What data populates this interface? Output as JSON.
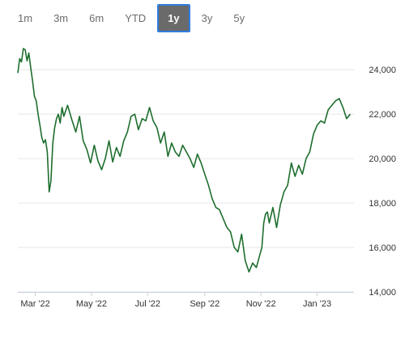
{
  "range_selector": {
    "buttons": [
      {
        "label": "1m",
        "active": false
      },
      {
        "label": "3m",
        "active": false
      },
      {
        "label": "6m",
        "active": false
      },
      {
        "label": "YTD",
        "active": false
      },
      {
        "label": "1y",
        "active": true
      },
      {
        "label": "3y",
        "active": false
      },
      {
        "label": "5y",
        "active": false
      }
    ]
  },
  "chart_data": {
    "type": "line",
    "x_ticks": [
      "Mar '22",
      "May '22",
      "Jul '22",
      "Sep '22",
      "Nov '22",
      "Jan '23"
    ],
    "y_ticks": [
      "14,000",
      "16,000",
      "18,000",
      "20,000",
      "22,000",
      "24,000"
    ],
    "ylim": [
      14000,
      25500
    ],
    "xlim": [
      "2022-02-10",
      "2023-02-10"
    ],
    "grid": {
      "horizontal": true,
      "vertical": false
    },
    "legend": "none",
    "line_color": "#1e6e2e",
    "series": [
      {
        "x": [
          "2022-02-10",
          "2022-02-12",
          "2022-02-14",
          "2022-02-16",
          "2022-02-18",
          "2022-02-20",
          "2022-02-22",
          "2022-02-24",
          "2022-02-26",
          "2022-02-28",
          "2022-03-02",
          "2022-03-04",
          "2022-03-06",
          "2022-03-08",
          "2022-03-10",
          "2022-03-12",
          "2022-03-14",
          "2022-03-16",
          "2022-03-18",
          "2022-03-20",
          "2022-03-22",
          "2022-03-24",
          "2022-03-26",
          "2022-03-28",
          "2022-03-30",
          "2022-04-01",
          "2022-04-05",
          "2022-04-10",
          "2022-04-14",
          "2022-04-18",
          "2022-04-22",
          "2022-04-26",
          "2022-04-30",
          "2022-05-04",
          "2022-05-08",
          "2022-05-12",
          "2022-05-16",
          "2022-05-20",
          "2022-05-24",
          "2022-05-28",
          "2022-06-01",
          "2022-06-05",
          "2022-06-09",
          "2022-06-13",
          "2022-06-17",
          "2022-06-21",
          "2022-06-25",
          "2022-06-29",
          "2022-07-03",
          "2022-07-07",
          "2022-07-11",
          "2022-07-15",
          "2022-07-19",
          "2022-07-23",
          "2022-07-27",
          "2022-07-31",
          "2022-08-04",
          "2022-08-08",
          "2022-08-12",
          "2022-08-16",
          "2022-08-20",
          "2022-08-24",
          "2022-08-28",
          "2022-09-01",
          "2022-09-05",
          "2022-09-09",
          "2022-09-13",
          "2022-09-17",
          "2022-09-21",
          "2022-09-25",
          "2022-09-29",
          "2022-10-03",
          "2022-10-07",
          "2022-10-11",
          "2022-10-15",
          "2022-10-19",
          "2022-10-23",
          "2022-10-27",
          "2022-10-31",
          "2022-11-02",
          "2022-11-04",
          "2022-11-06",
          "2022-11-08",
          "2022-11-10",
          "2022-11-14",
          "2022-11-18",
          "2022-11-22",
          "2022-11-26",
          "2022-11-30",
          "2022-12-04",
          "2022-12-08",
          "2022-12-12",
          "2022-12-16",
          "2022-12-20",
          "2022-12-24",
          "2022-12-28",
          "2023-01-01",
          "2023-01-05",
          "2023-01-09",
          "2023-01-13",
          "2023-01-17",
          "2023-01-21",
          "2023-01-25",
          "2023-01-29",
          "2023-02-02",
          "2023-02-06"
        ],
        "y": [
          23850,
          24500,
          24350,
          24950,
          24900,
          24400,
          24750,
          24100,
          23500,
          22800,
          22600,
          22000,
          21500,
          20950,
          20700,
          20850,
          20300,
          18500,
          19000,
          20700,
          21400,
          21800,
          22000,
          21600,
          22300,
          21900,
          22400,
          21700,
          21200,
          21900,
          20800,
          20400,
          19800,
          20600,
          19900,
          19500,
          20000,
          20800,
          19850,
          20500,
          20100,
          20800,
          21200,
          21900,
          22000,
          21300,
          21800,
          21700,
          22300,
          21700,
          21400,
          20700,
          21200,
          20100,
          20700,
          20300,
          20100,
          20600,
          20300,
          20000,
          19600,
          20200,
          19800,
          19300,
          18800,
          18200,
          17800,
          17700,
          17300,
          16900,
          16700,
          16000,
          15800,
          16600,
          15400,
          14900,
          15300,
          15100,
          15700,
          16000,
          17100,
          17500,
          17600,
          17100,
          17800,
          16900,
          17900,
          18500,
          18800,
          19800,
          19200,
          19700,
          19300,
          20000,
          20300,
          21100,
          21500,
          21700,
          21600,
          22200,
          22400,
          22600,
          22700,
          22300,
          21800,
          22000
        ]
      }
    ]
  }
}
